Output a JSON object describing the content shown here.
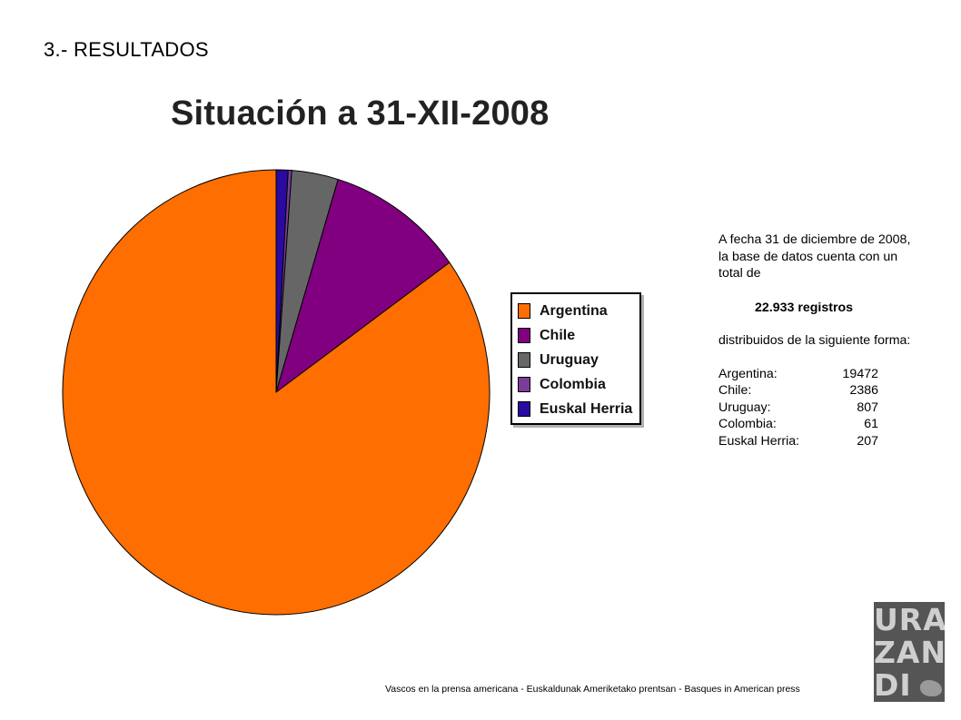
{
  "section_title": "3.- RESULTADOS",
  "chart_data": {
    "type": "pie",
    "title": "Situación a 31-XII-2008",
    "categories": [
      "Argentina",
      "Chile",
      "Uruguay",
      "Colombia",
      "Euskal Herria"
    ],
    "values": [
      19472,
      2386,
      807,
      61,
      207
    ],
    "colors": [
      "#FF6E00",
      "#800080",
      "#666666",
      "#7A3E9A",
      "#2A0AA0"
    ],
    "start_order": [
      "Euskal Herria",
      "Colombia",
      "Uruguay",
      "Chile",
      "Argentina"
    ],
    "legend_position": "right"
  },
  "info": {
    "intro": "A fecha 31 de diciembre de 2008, la base de datos cuenta con un total de",
    "total": "22.933  registros",
    "distribution": "distribuidos de la siguiente forma:",
    "rows": [
      {
        "country": "Argentina:",
        "count": "19472"
      },
      {
        "country": "Chile:",
        "count": "2386"
      },
      {
        "country": "Uruguay:",
        "count": "807"
      },
      {
        "country": "Colombia:",
        "count": "61"
      },
      {
        "country": "Euskal Herria:",
        "count": "207"
      }
    ]
  },
  "footer": "Vascos en la prensa americana - Euskaldunak Ameriketako prentsan - Basques in American press",
  "logo": {
    "lines": [
      "URA",
      "ZAN",
      "DI"
    ]
  }
}
